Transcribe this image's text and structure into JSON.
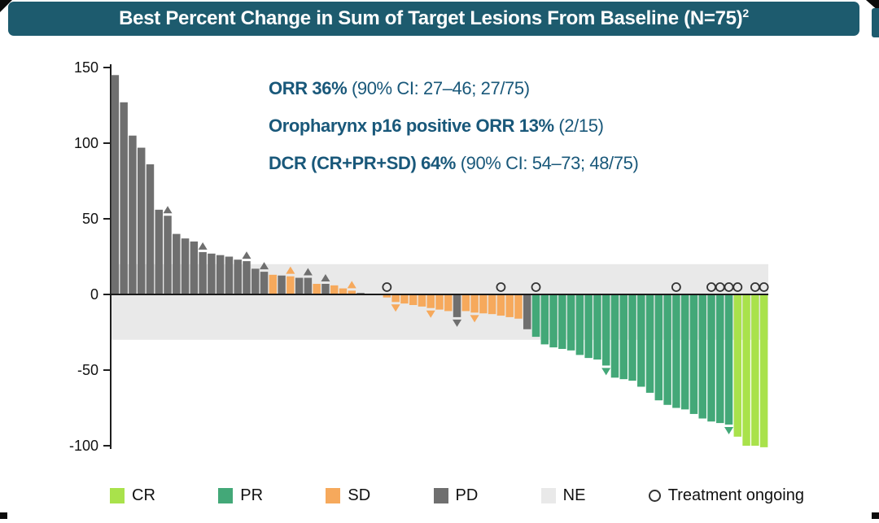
{
  "header": {
    "title": "Best Percent Change in Sum of Target Lesions From Baseline (N=75)",
    "superscript": "2"
  },
  "annotations": {
    "line1": {
      "bold": "ORR 36% ",
      "rest": "(90% CI: 27–46; 27/75)"
    },
    "line2": {
      "bold": "Oropharynx p16 positive ORR 13% ",
      "rest": "(2/15)"
    },
    "line3": {
      "bold": "DCR (CR+PR+SD) 64% ",
      "rest": "(90% CI: 54–73; 48/75)"
    }
  },
  "colors": {
    "header_bg": "#1d5b6e",
    "annotation_text": "#19587a",
    "cr": "#a9e24b",
    "pr": "#43a878",
    "sd": "#f6a95c",
    "pd": "#6f6f6f",
    "ne_band": "#e9e9e9",
    "axis": "#1f1f1f",
    "ongoing_circle": "#333333"
  },
  "legend": {
    "items": [
      {
        "label": "CR",
        "key": "cr"
      },
      {
        "label": "PR",
        "key": "pr"
      },
      {
        "label": "SD",
        "key": "sd"
      },
      {
        "label": "PD",
        "key": "pd"
      },
      {
        "label": "NE",
        "key": "ne_band"
      },
      {
        "label": "Treatment ongoing",
        "key": "ongoing"
      }
    ]
  },
  "chart_data": {
    "type": "bar",
    "title": "Best Percent Change in Sum of Target Lesions From Baseline (N=75)",
    "yticks": [
      150,
      100,
      50,
      0,
      -50,
      -100
    ],
    "ylim": [
      -110,
      155
    ],
    "grid": false,
    "reference_band": {
      "from": -30,
      "to": 20
    },
    "categories_legend": [
      "CR",
      "PR",
      "SD",
      "PD",
      "NE"
    ],
    "bars": [
      {
        "value": 145,
        "category": "PD"
      },
      {
        "value": 127,
        "category": "PD"
      },
      {
        "value": 105,
        "category": "PD"
      },
      {
        "value": 97,
        "category": "PD"
      },
      {
        "value": 86,
        "category": "PD"
      },
      {
        "value": 56,
        "category": "PD"
      },
      {
        "value": 52,
        "category": "PD",
        "marker": "up"
      },
      {
        "value": 40,
        "category": "PD"
      },
      {
        "value": 37,
        "category": "PD"
      },
      {
        "value": 35,
        "category": "PD"
      },
      {
        "value": 28,
        "category": "PD",
        "marker": "up"
      },
      {
        "value": 27,
        "category": "PD"
      },
      {
        "value": 26,
        "category": "PD"
      },
      {
        "value": 25,
        "category": "PD"
      },
      {
        "value": 23,
        "category": "PD"
      },
      {
        "value": 22,
        "category": "PD",
        "marker": "up"
      },
      {
        "value": 17,
        "category": "PD"
      },
      {
        "value": 15,
        "category": "PD",
        "marker": "up"
      },
      {
        "value": 13,
        "category": "SD"
      },
      {
        "value": 12.5,
        "category": "PD"
      },
      {
        "value": 12,
        "category": "SD",
        "marker": "up"
      },
      {
        "value": 11,
        "category": "PD"
      },
      {
        "value": 11,
        "category": "PD",
        "marker": "up"
      },
      {
        "value": 7,
        "category": "SD"
      },
      {
        "value": 7,
        "category": "PD",
        "marker": "up"
      },
      {
        "value": 6,
        "category": "SD"
      },
      {
        "value": 4,
        "category": "SD"
      },
      {
        "value": 2.5,
        "category": "SD",
        "marker": "up"
      },
      {
        "value": 1,
        "category": "PD"
      },
      {
        "value": 0.5,
        "category": "NE"
      },
      {
        "value": 0.5,
        "category": "NE"
      },
      {
        "value": -2,
        "category": "SD",
        "ongoing": true
      },
      {
        "value": -5,
        "category": "SD",
        "marker": "down"
      },
      {
        "value": -6,
        "category": "SD"
      },
      {
        "value": -7,
        "category": "SD"
      },
      {
        "value": -8,
        "category": "SD"
      },
      {
        "value": -9,
        "category": "SD",
        "marker": "down"
      },
      {
        "value": -10,
        "category": "SD"
      },
      {
        "value": -11,
        "category": "SD"
      },
      {
        "value": -15,
        "category": "PD",
        "marker": "down"
      },
      {
        "value": -11,
        "category": "SD"
      },
      {
        "value": -12,
        "category": "SD",
        "marker": "down"
      },
      {
        "value": -12.5,
        "category": "SD"
      },
      {
        "value": -13,
        "category": "SD"
      },
      {
        "value": -14,
        "category": "SD",
        "ongoing": true
      },
      {
        "value": -15,
        "category": "SD"
      },
      {
        "value": -16,
        "category": "SD"
      },
      {
        "value": -23,
        "category": "PD"
      },
      {
        "value": -28,
        "category": "PR",
        "ongoing": true
      },
      {
        "value": -33,
        "category": "PR"
      },
      {
        "value": -35,
        "category": "PR"
      },
      {
        "value": -36,
        "category": "PR"
      },
      {
        "value": -37,
        "category": "PR"
      },
      {
        "value": -40,
        "category": "PR"
      },
      {
        "value": -42,
        "category": "PR"
      },
      {
        "value": -43,
        "category": "PR"
      },
      {
        "value": -47,
        "category": "PR",
        "marker": "down"
      },
      {
        "value": -55,
        "category": "PR"
      },
      {
        "value": -56,
        "category": "PR"
      },
      {
        "value": -57,
        "category": "PR"
      },
      {
        "value": -61,
        "category": "PR"
      },
      {
        "value": -65,
        "category": "PR"
      },
      {
        "value": -70,
        "category": "PR"
      },
      {
        "value": -73,
        "category": "PR"
      },
      {
        "value": -75,
        "category": "PR",
        "ongoing": true
      },
      {
        "value": -76,
        "category": "PR"
      },
      {
        "value": -79,
        "category": "PR"
      },
      {
        "value": -82,
        "category": "PR"
      },
      {
        "value": -84,
        "category": "PR",
        "ongoing": true
      },
      {
        "value": -85,
        "category": "PR",
        "ongoing": true
      },
      {
        "value": -86,
        "category": "PR",
        "ongoing": true,
        "marker": "down"
      },
      {
        "value": -94,
        "category": "CR",
        "ongoing": true
      },
      {
        "value": -100,
        "category": "CR"
      },
      {
        "value": -100,
        "category": "CR",
        "ongoing": true
      },
      {
        "value": -101,
        "category": "CR",
        "ongoing": true
      }
    ]
  }
}
